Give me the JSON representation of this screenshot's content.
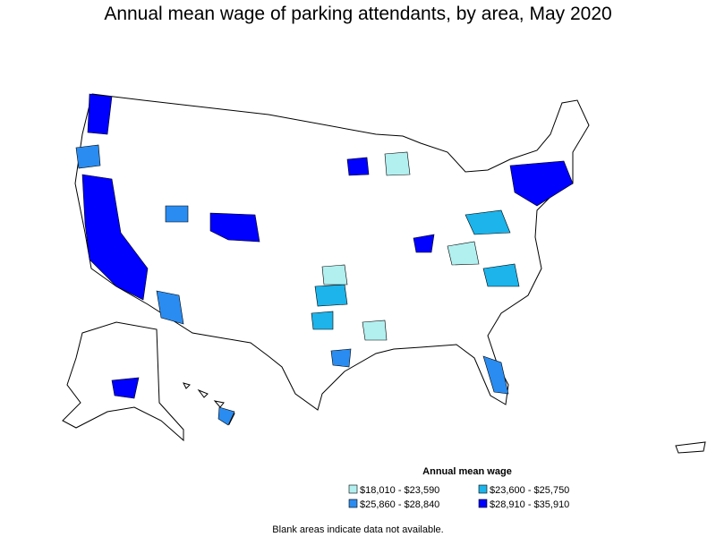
{
  "title": "Annual mean wage of parking attendants, by area, May 2020",
  "legend": {
    "title": "Annual mean wage",
    "items": [
      {
        "label": "$18,010 - $23,590",
        "color": "#b2f0f0"
      },
      {
        "label": "$23,600 - $25,750",
        "color": "#1cb4ea"
      },
      {
        "label": "$25,860 - $28,840",
        "color": "#2a8cf0"
      },
      {
        "label": "$28,910 - $35,910",
        "color": "#0000ff"
      }
    ]
  },
  "note": "Blank areas indicate data not available."
}
